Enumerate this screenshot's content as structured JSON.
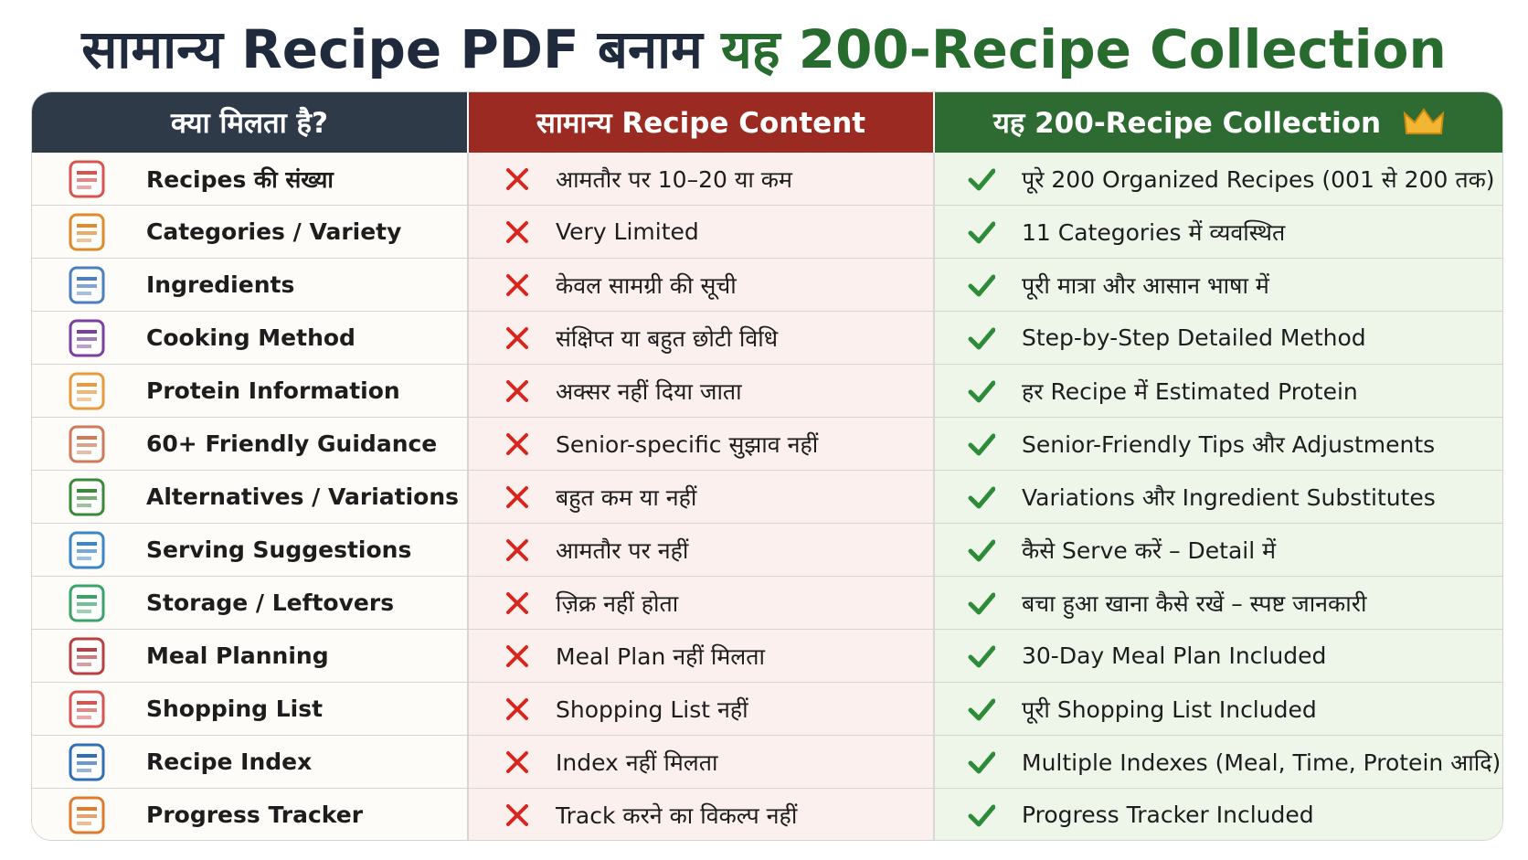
{
  "title": {
    "part1": "सामान्य Recipe PDF बनाम",
    "part2": "यह 200-Recipe Collection"
  },
  "table": {
    "headers": [
      "क्या मिलता है?",
      "सामान्य Recipe Content",
      "यह 200-Recipe Collection"
    ],
    "rows": [
      [
        "Recipes की संख्या",
        "आमतौर पर 10–20 या कम",
        "पूरे 200 Organized Recipes (001 से 200 तक)"
      ],
      [
        "Categories / Variety",
        "Very Limited",
        "11 Categories में व्यवस्थित"
      ],
      [
        "Ingredients",
        "केवल सामग्री की सूची",
        "पूरी मात्रा और आसान भाषा में"
      ],
      [
        "Cooking Method",
        "संक्षिप्त या बहुत छोटी विधि",
        "Step-by-Step Detailed Method"
      ],
      [
        "Protein Information",
        "अक्सर नहीं दिया जाता",
        "हर Recipe में Estimated Protein"
      ],
      [
        "60+ Friendly Guidance",
        "Senior-specific सुझाव नहीं",
        "Senior-Friendly Tips और Adjustments"
      ],
      [
        "Alternatives / Variations",
        "बहुत कम या नहीं",
        "Variations और Ingredient Substitutes"
      ],
      [
        "Serving Suggestions",
        "आमतौर पर नहीं",
        "कैसे Serve करें – Detail में"
      ],
      [
        "Storage / Leftovers",
        "ज़िक्र नहीं होता",
        "बचा हुआ खाना कैसे रखें – स्पष्ट जानकारी"
      ],
      [
        "Meal Planning",
        "Meal Plan नहीं मिलता",
        "30-Day Meal Plan Included"
      ],
      [
        "Shopping List",
        "Shopping List नहीं",
        "पूरी Shopping List Included"
      ],
      [
        "Recipe Index",
        "Index नहीं मिलता",
        "Multiple Indexes (Meal, Time, Protein आदि)"
      ],
      [
        "Progress Tracker",
        "Track करने का विकल्प नहीं",
        "Progress Tracker Included"
      ]
    ]
  }
}
